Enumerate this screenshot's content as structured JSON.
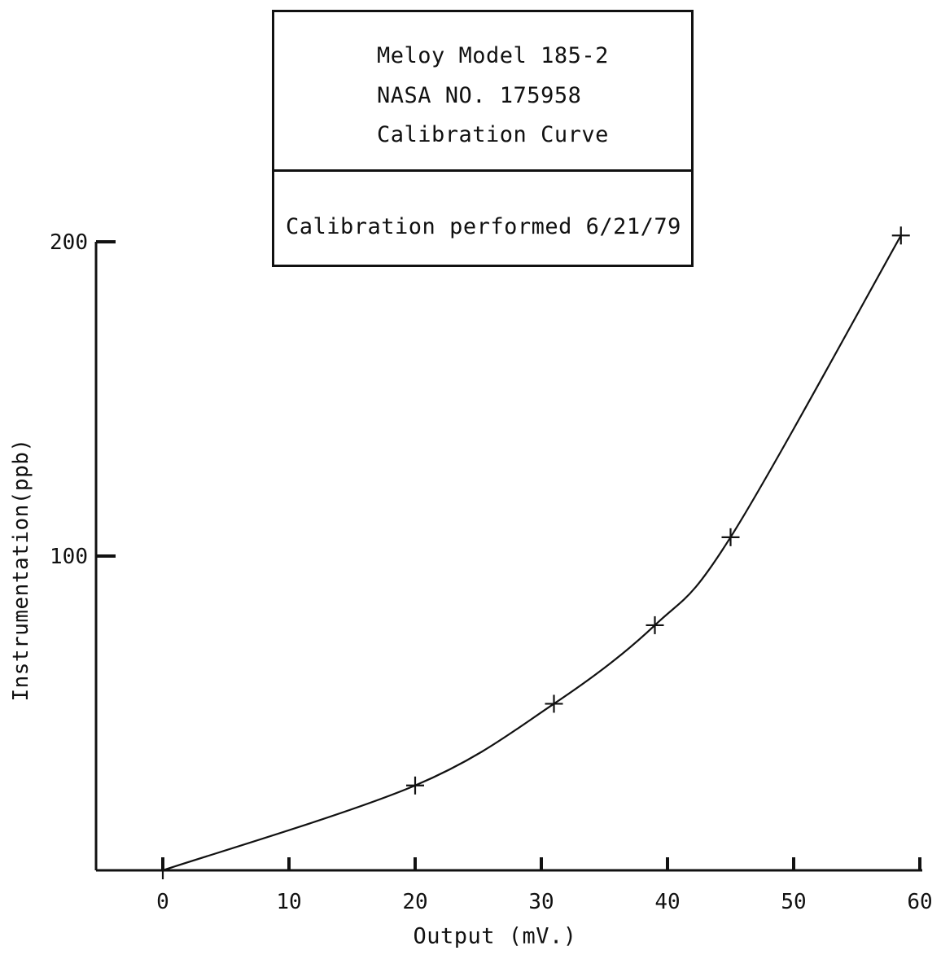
{
  "title_box": {
    "lines": [
      "Meloy Model 185-2",
      "NASA NO. 175958",
      "Calibration Curve"
    ],
    "note": "Calibration performed 6/21/79"
  },
  "chart_data": {
    "type": "line",
    "xlabel": "Output (mV.)",
    "ylabel": "Instrumentation(ppb)",
    "xlim": [
      0,
      60
    ],
    "ylim": [
      0,
      200
    ],
    "x_ticks": [
      0,
      10,
      20,
      30,
      40,
      50,
      60
    ],
    "y_ticks": [
      100,
      200
    ],
    "series": [
      {
        "points": [
          {
            "x": 0,
            "y": 0
          },
          {
            "x": 20,
            "y": 27
          },
          {
            "x": 31,
            "y": 53
          },
          {
            "x": 39,
            "y": 78
          },
          {
            "x": 45,
            "y": 106
          },
          {
            "x": 58.5,
            "y": 202
          }
        ]
      }
    ],
    "marker": "plus",
    "line_color": "#111111",
    "grid": false
  }
}
